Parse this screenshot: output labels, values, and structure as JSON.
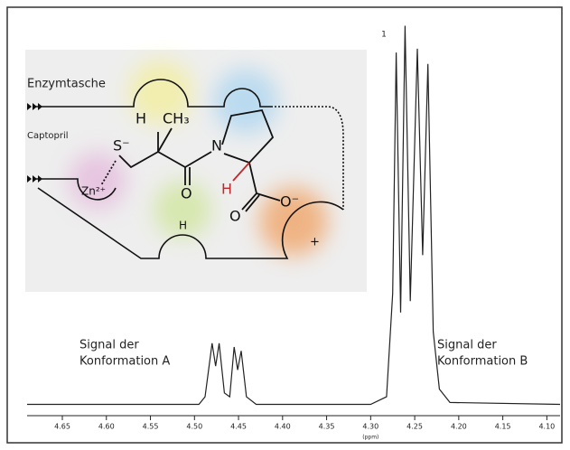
{
  "chart_data": {
    "type": "line",
    "xlabel": "(ppm)",
    "x": [
      4.69,
      4.55,
      4.495,
      4.488,
      4.48,
      4.476,
      4.472,
      4.466,
      4.46,
      4.455,
      4.451,
      4.447,
      4.441,
      4.43,
      4.3,
      4.282,
      4.275,
      4.271,
      4.266,
      4.261,
      4.255,
      4.247,
      4.241,
      4.235,
      4.229,
      4.222,
      4.21,
      4.085
    ],
    "values": [
      1,
      1,
      1,
      3,
      17,
      11,
      17,
      4,
      3,
      16,
      10,
      15,
      3,
      1,
      1,
      3,
      30,
      93,
      25,
      100,
      28,
      94,
      40,
      90,
      20,
      5,
      1.5,
      1
    ],
    "color": "#222222",
    "xlim": [
      4.69,
      4.085
    ],
    "ylim": [
      -1,
      102
    ],
    "xticks": [
      4.65,
      {
        "value": 4.6,
        "label": "4.60"
      },
      4.55,
      {
        "value": 4.5,
        "label": "4.50"
      },
      4.45,
      {
        "value": 4.4,
        "label": "4.40"
      },
      4.35,
      {
        "value": 4.3,
        "label": "4.30"
      },
      4.25,
      {
        "value": 4.2,
        "label": "4.20"
      },
      4.15,
      {
        "value": 4.1,
        "label": "4.10"
      }
    ],
    "annotations": [
      {
        "lines": [
          "Signal der",
          "Konformation A"
        ]
      },
      {
        "lines": [
          "Signal der",
          "Konformation B"
        ]
      }
    ],
    "peak_label": "1",
    "inset_labels": [
      "Enzymtasche",
      "Captopril",
      "S⁻",
      "H",
      "CH₃",
      "N",
      "O",
      "H",
      "O",
      "O⁻",
      "Zn²⁺",
      "H",
      "+"
    ]
  }
}
